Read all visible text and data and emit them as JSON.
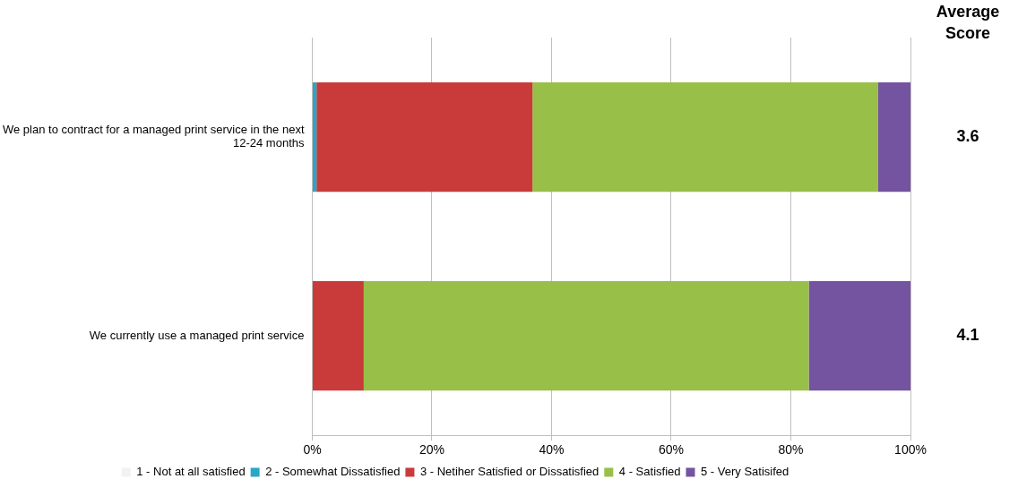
{
  "chart_data": {
    "type": "bar",
    "orientation": "horizontal",
    "stacked": true,
    "categories": [
      "We plan to contract for a managed print service in the next 12-24 months",
      "We currently use a managed print service"
    ],
    "series": [
      {
        "name": "1 - Not at all satisfied",
        "color": "#f2f2f2",
        "values": [
          0,
          0
        ]
      },
      {
        "name": "2 - Somewhat Dissatisfied",
        "color": "#2aa6c8",
        "values": [
          0.7,
          0
        ]
      },
      {
        "name": "3 - Netiher Satisfied or Dissatisfied",
        "color": "#c93b3a",
        "values": [
          36.1,
          8.6
        ]
      },
      {
        "name": "4 - Satisfied",
        "color": "#98bf48",
        "values": [
          57.8,
          74.4
        ]
      },
      {
        "name": "5 - Very Satisifed",
        "color": "#7453a0",
        "values": [
          5.4,
          17.0
        ]
      }
    ],
    "xlim": [
      0,
      100
    ],
    "xticks": [
      {
        "value": 0,
        "label": "0%"
      },
      {
        "value": 20,
        "label": "20%"
      },
      {
        "value": 40,
        "label": "40%"
      },
      {
        "value": 60,
        "label": "60%"
      },
      {
        "value": 80,
        "label": "80%"
      },
      {
        "value": 100,
        "label": "100%"
      }
    ],
    "grid": "x",
    "legend": "bottom",
    "annotations": [
      "Average Score",
      "3.6",
      "4.1"
    ]
  }
}
